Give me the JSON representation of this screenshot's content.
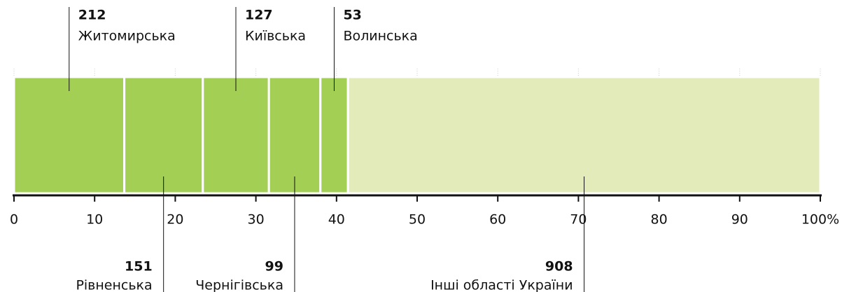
{
  "chart_data": {
    "type": "stacked-share",
    "categories": [
      "Житомирська",
      "Рівненська",
      "Київська",
      "Чернігівська",
      "Волинська",
      "Інші області України"
    ],
    "values": [
      212,
      151,
      127,
      99,
      53,
      908
    ],
    "colors": [
      "#a3cf55",
      "#a3cf55",
      "#a3cf55",
      "#a3cf55",
      "#a3cf55",
      "#e2ebb9"
    ],
    "xlim": [
      0,
      100
    ],
    "xticks": [
      0,
      10,
      20,
      30,
      40,
      50,
      60,
      70,
      80,
      90,
      {
        "value": 100,
        "label": "100%"
      }
    ],
    "grid": true
  }
}
